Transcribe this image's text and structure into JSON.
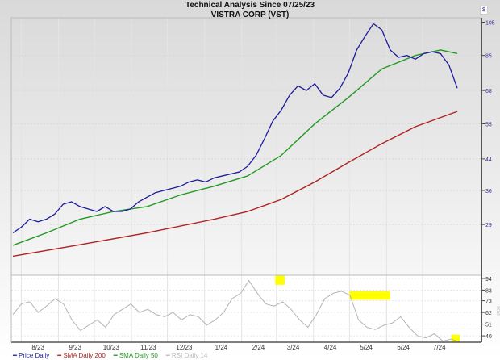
{
  "chart_data": {
    "type": "line",
    "title": "Technical Analysis Since 07/25/23",
    "subtitle": "VISTRA CORP (VST)",
    "currency_symbol": "$",
    "y_scale": "log",
    "ylim": [
      21,
      108
    ],
    "y_ticks": [
      105,
      85,
      68,
      55,
      44,
      36,
      29
    ],
    "x_ticks": [
      "8/23",
      "9/23",
      "10/23",
      "11/23",
      "12/23",
      "1/24",
      "2/24",
      "3/24",
      "4/24",
      "5/24",
      "6/24",
      "7/24"
    ],
    "x_range": [
      "2023-07-25",
      "2024-08-01"
    ],
    "grid": true,
    "legend_placement": "bottom-left",
    "series": [
      {
        "name": "Price Daily",
        "color": "#1c1c9c",
        "x": [
          "2023-07-25",
          "2023-08-01",
          "2023-08-08",
          "2023-08-15",
          "2023-08-22",
          "2023-08-29",
          "2023-09-05",
          "2023-09-12",
          "2023-09-19",
          "2023-09-26",
          "2023-10-03",
          "2023-10-10",
          "2023-10-17",
          "2023-10-24",
          "2023-10-31",
          "2023-11-07",
          "2023-11-14",
          "2023-11-21",
          "2023-11-28",
          "2023-12-05",
          "2023-12-12",
          "2023-12-19",
          "2023-12-26",
          "2024-01-02",
          "2024-01-09",
          "2024-01-16",
          "2024-01-23",
          "2024-01-30",
          "2024-02-06",
          "2024-02-13",
          "2024-02-20",
          "2024-02-27",
          "2024-03-05",
          "2024-03-12",
          "2024-03-19",
          "2024-03-26",
          "2024-04-02",
          "2024-04-09",
          "2024-04-16",
          "2024-04-23",
          "2024-04-30",
          "2024-05-07",
          "2024-05-14",
          "2024-05-21",
          "2024-05-28",
          "2024-06-04",
          "2024-06-11",
          "2024-06-18",
          "2024-06-25",
          "2024-07-02",
          "2024-07-09",
          "2024-07-16",
          "2024-07-23",
          "2024-07-30"
        ],
        "y": [
          27.5,
          28.5,
          30,
          29.5,
          30,
          31,
          33,
          33.5,
          32.5,
          32,
          31.5,
          32.5,
          31.5,
          31.5,
          32,
          33.5,
          34.5,
          35.5,
          36,
          36.5,
          37,
          38,
          38.5,
          38,
          39,
          39.5,
          40,
          40.5,
          42,
          45,
          50,
          56,
          60,
          66,
          70,
          68,
          71,
          66,
          65,
          69,
          76,
          88,
          96,
          104,
          100,
          88,
          84,
          85,
          83,
          86,
          87,
          86,
          80,
          69
        ]
      },
      {
        "name": "SMA Daily 200",
        "color": "#b02222",
        "x": [
          "2023-07-25",
          "2023-09-19",
          "2023-11-14",
          "2024-01-09",
          "2024-02-06",
          "2024-03-05",
          "2024-04-02",
          "2024-04-30",
          "2024-05-28",
          "2024-06-25",
          "2024-07-30"
        ],
        "y": [
          23.7,
          25.5,
          27.5,
          30,
          31.5,
          34,
          38,
          43,
          48.5,
          54,
          59.5
        ]
      },
      {
        "name": "SMA Daily 50",
        "color": "#229922",
        "x": [
          "2023-07-25",
          "2023-08-22",
          "2023-09-19",
          "2023-10-17",
          "2023-11-14",
          "2023-12-12",
          "2024-01-09",
          "2024-02-06",
          "2024-03-05",
          "2024-04-02",
          "2024-04-30",
          "2024-05-28",
          "2024-06-25",
          "2024-07-16",
          "2024-07-30"
        ],
        "y": [
          25.4,
          27.5,
          30,
          31.5,
          32.5,
          35,
          37,
          39.5,
          45,
          55,
          65,
          78,
          85,
          88,
          86
        ]
      }
    ],
    "rsi": {
      "name": "RSI Daily 14",
      "axis_label": "RSI",
      "color": "#b4b4b4",
      "ylim": [
        34,
        97
      ],
      "y_ticks": [
        94,
        83,
        73,
        62,
        51,
        40
      ],
      "y": [
        60,
        70,
        72,
        62,
        68,
        75,
        70,
        55,
        45,
        50,
        55,
        48,
        60,
        65,
        70,
        62,
        65,
        60,
        58,
        62,
        55,
        60,
        58,
        50,
        55,
        62,
        75,
        80,
        92,
        80,
        70,
        68,
        72,
        65,
        55,
        48,
        60,
        75,
        80,
        82,
        78,
        55,
        48,
        46,
        50,
        52,
        58,
        48,
        40,
        38,
        42,
        35,
        37,
        34
      ],
      "highlight_color": "#ffff00",
      "highlights": [
        [
          "2024-02-29",
          "2024-03-08",
          88,
          97
        ],
        [
          "2024-05-01",
          "2024-06-04",
          74,
          82
        ],
        [
          "2024-07-25",
          "2024-08-01",
          34,
          41
        ]
      ]
    }
  }
}
